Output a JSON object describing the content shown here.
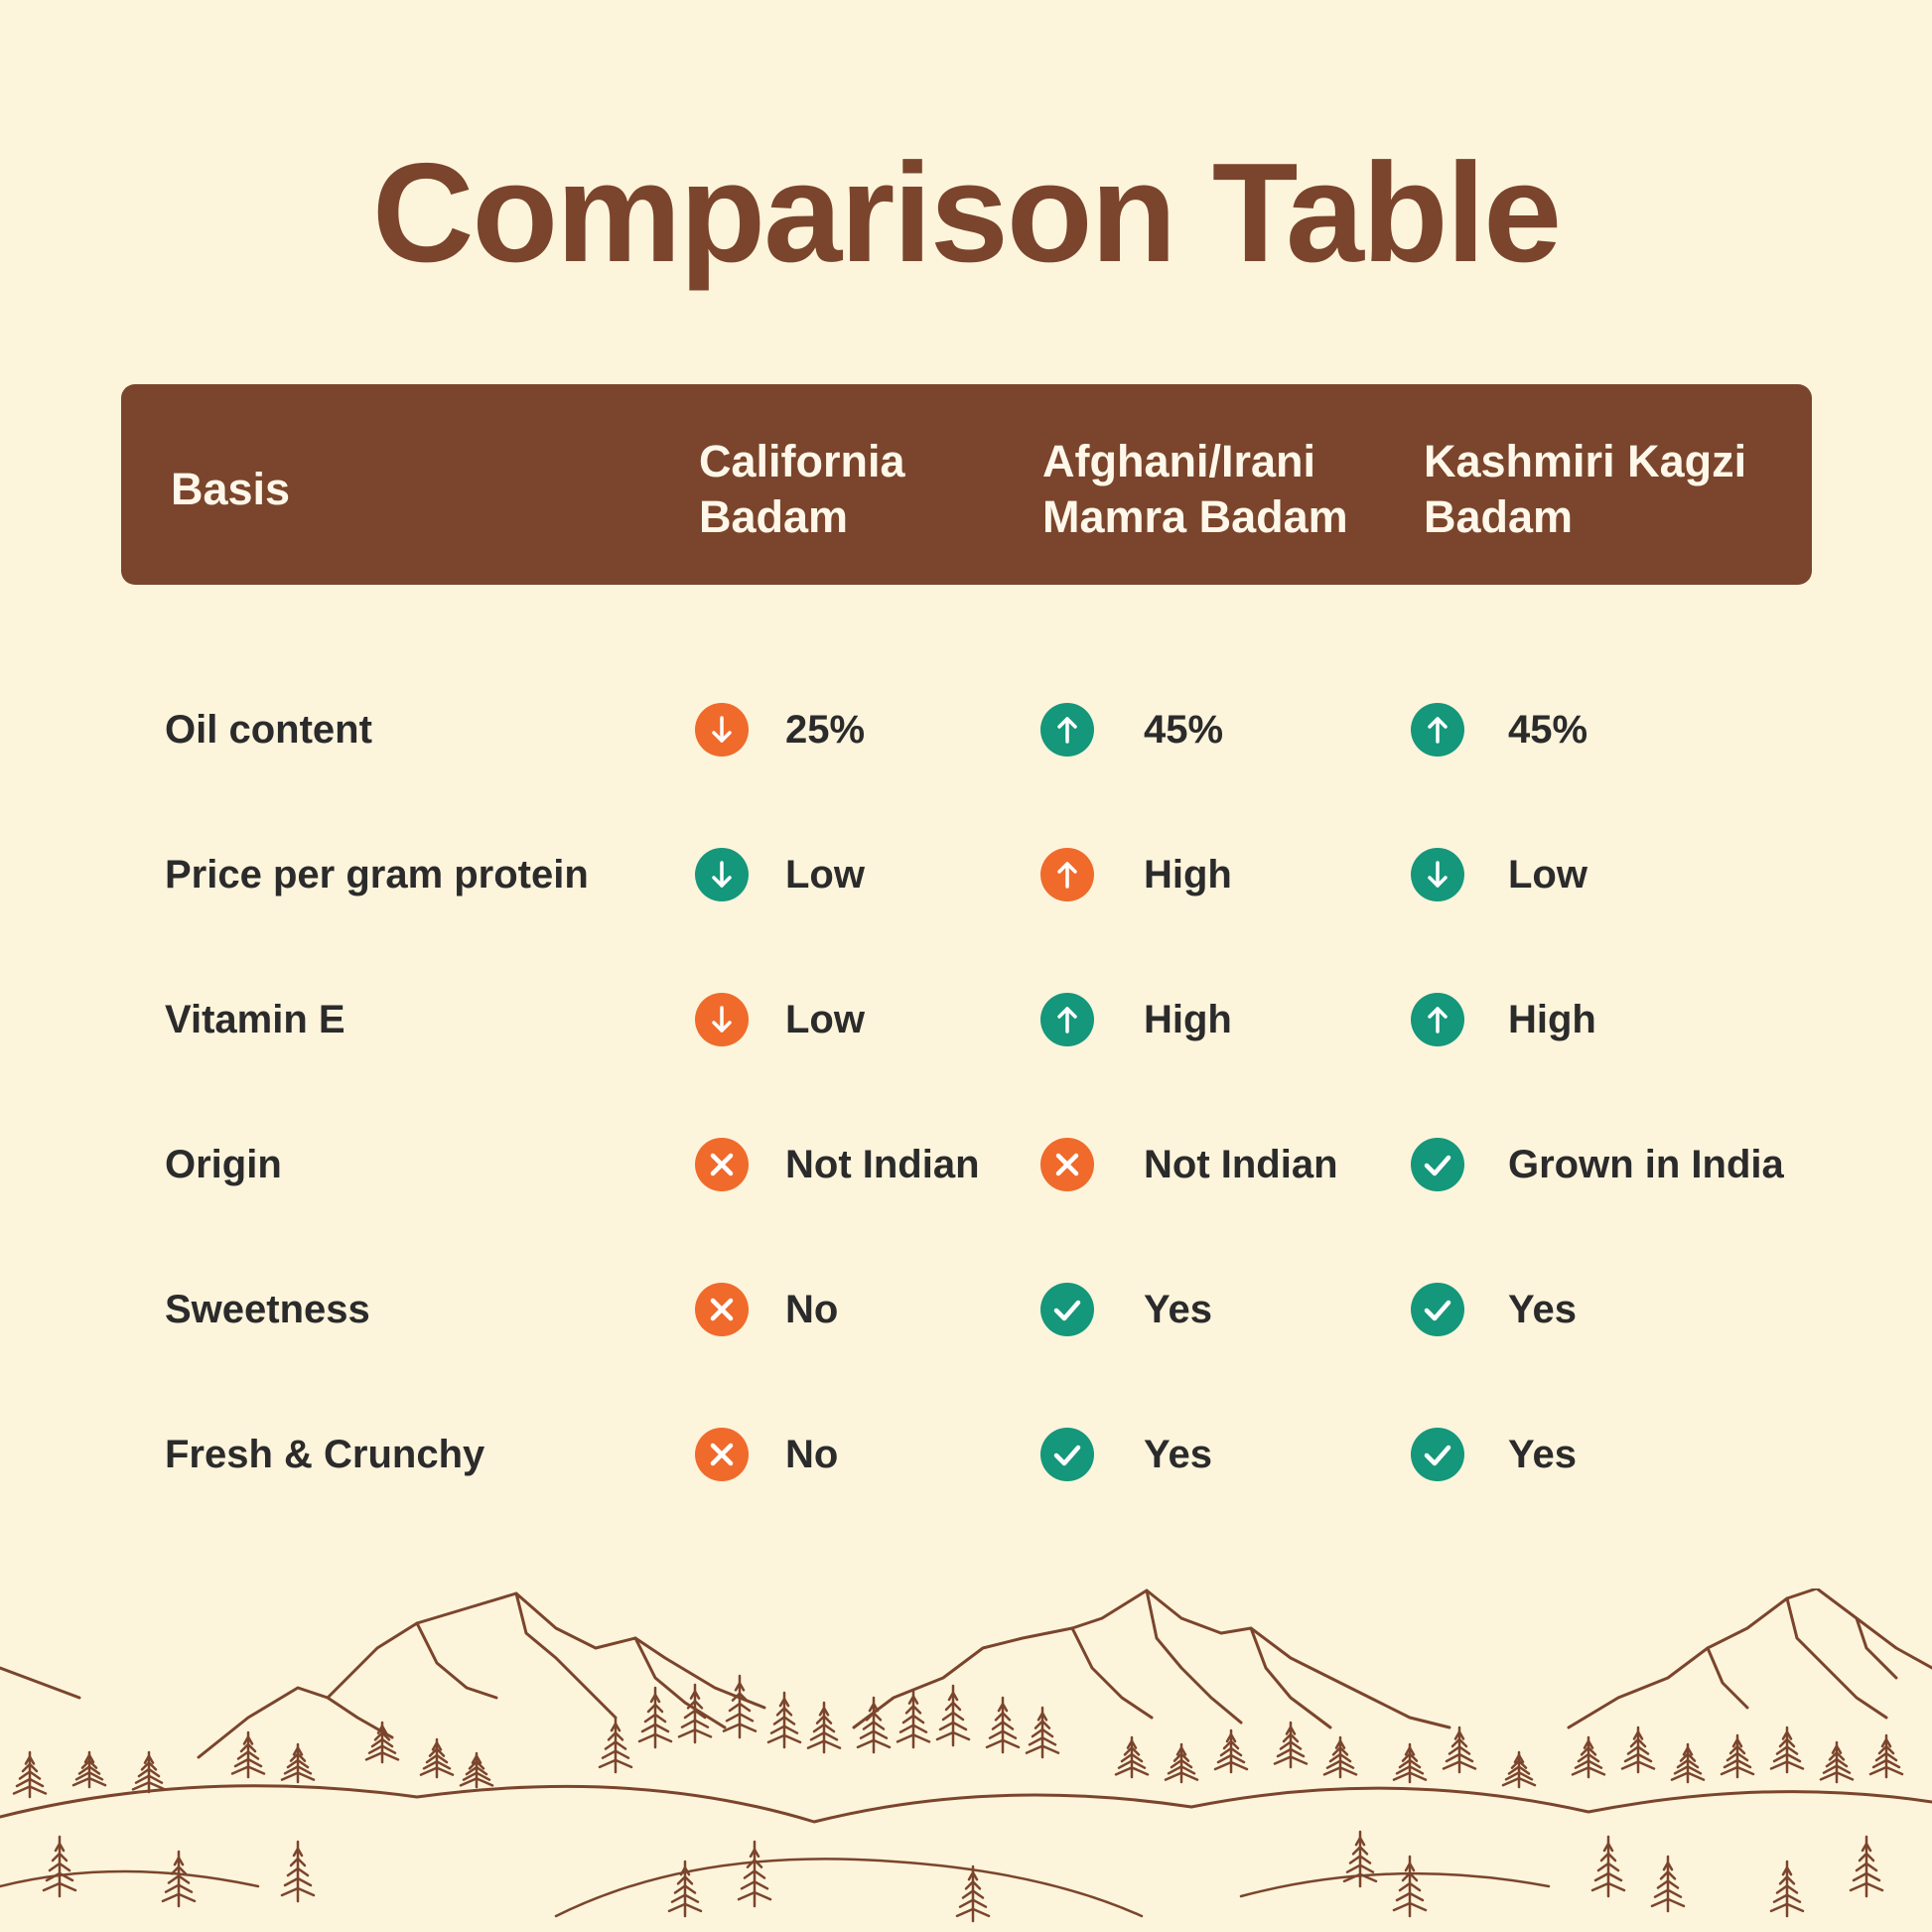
{
  "title": "Comparison Table",
  "colors": {
    "background": "#fdf4dc",
    "brand_brown": "#7a452c",
    "title_brown": "#7a452c",
    "good_green": "#14977a",
    "bad_orange": "#f06a2b",
    "text_dark": "#2b2b2b"
  },
  "header": {
    "basis": "Basis",
    "columns": [
      {
        "line1": "California",
        "line2": "Badam"
      },
      {
        "line1": "Afghani/Irani",
        "line2": "Mamra Badam"
      },
      {
        "line1": "Kashmiri Kagzi",
        "line2": "Badam"
      }
    ]
  },
  "rows": [
    {
      "basis": "Oil content",
      "cells": [
        {
          "text": "25%",
          "icon": "arrow-down-icon",
          "status": "bad"
        },
        {
          "text": "45%",
          "icon": "arrow-up-icon",
          "status": "good"
        },
        {
          "text": "45%",
          "icon": "arrow-up-icon",
          "status": "good"
        }
      ]
    },
    {
      "basis": "Price per gram protein",
      "cells": [
        {
          "text": "Low",
          "icon": "arrow-down-icon",
          "status": "good"
        },
        {
          "text": "High",
          "icon": "arrow-up-icon",
          "status": "bad"
        },
        {
          "text": "Low",
          "icon": "arrow-down-icon",
          "status": "good"
        }
      ]
    },
    {
      "basis": "Vitamin E",
      "cells": [
        {
          "text": "Low",
          "icon": "arrow-down-icon",
          "status": "bad"
        },
        {
          "text": "High",
          "icon": "arrow-up-icon",
          "status": "good"
        },
        {
          "text": "High",
          "icon": "arrow-up-icon",
          "status": "good"
        }
      ]
    },
    {
      "basis": "Origin",
      "cells": [
        {
          "text": "Not Indian",
          "icon": "cross-icon",
          "status": "bad"
        },
        {
          "text": "Not Indian",
          "icon": "cross-icon",
          "status": "bad"
        },
        {
          "text": "Grown in India",
          "icon": "check-icon",
          "status": "good"
        }
      ]
    },
    {
      "basis": "Sweetness",
      "cells": [
        {
          "text": "No",
          "icon": "cross-icon",
          "status": "bad"
        },
        {
          "text": "Yes",
          "icon": "check-icon",
          "status": "good"
        },
        {
          "text": "Yes",
          "icon": "check-icon",
          "status": "good"
        }
      ]
    },
    {
      "basis": "Fresh & Crunchy",
      "cells": [
        {
          "text": "No",
          "icon": "cross-icon",
          "status": "bad"
        },
        {
          "text": "Yes",
          "icon": "check-icon",
          "status": "good"
        },
        {
          "text": "Yes",
          "icon": "check-icon",
          "status": "good"
        }
      ]
    }
  ],
  "decoration": {
    "illustration": "mountain-forest-illustration"
  }
}
